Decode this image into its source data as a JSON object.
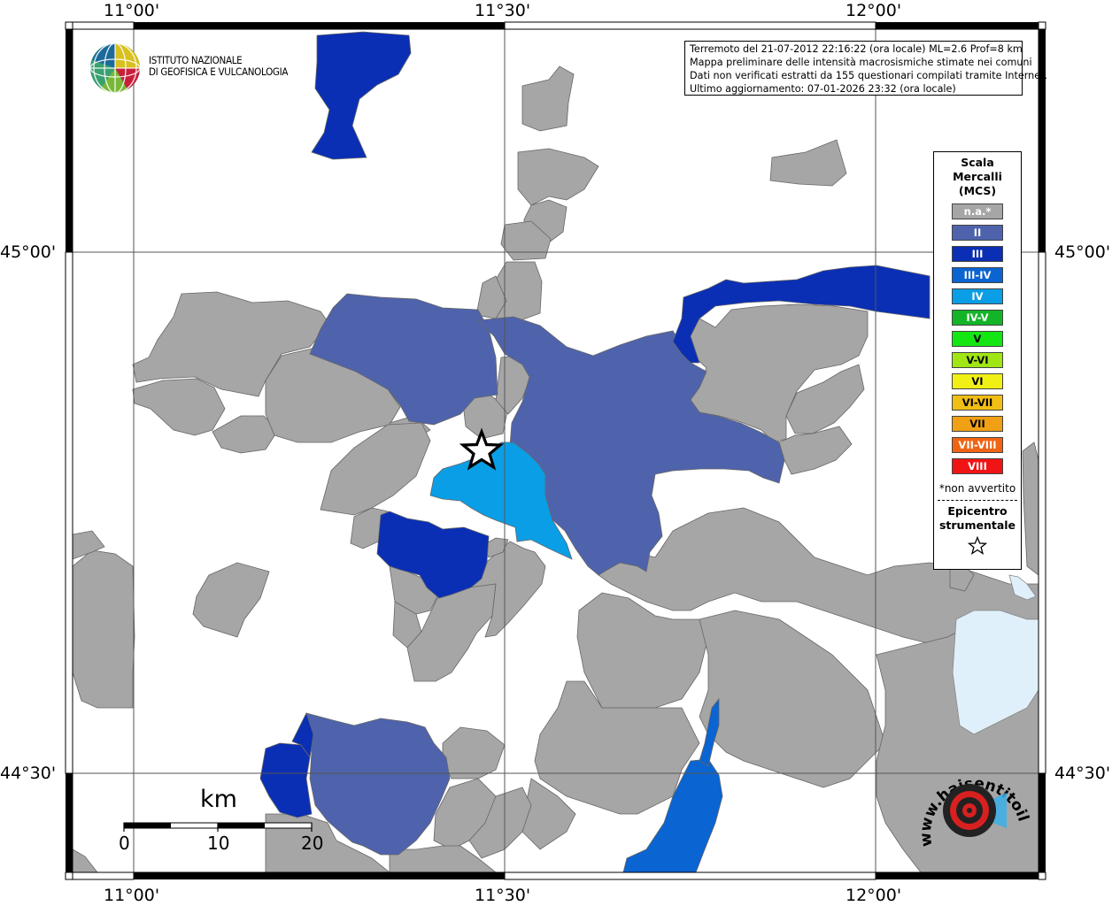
{
  "axes": {
    "lon_labels": [
      "11°00'",
      "11°30'",
      "12°00'"
    ],
    "lat_labels": [
      "45°00'",
      "44°30'"
    ]
  },
  "logo": {
    "line1": "ISTITUTO NAZIONALE",
    "line2": "DI GEOFISICA E VULCANOLOGIA",
    "icon": "globe-logo-icon"
  },
  "info": {
    "line1": "Terremoto del 21-07-2012 22:16:22 (ora locale) ML=2.6 Prof=8 km",
    "line2": "Mappa preliminare delle intensità macrosismiche stimate nei comuni",
    "line3": "Dati non verificati estratti da 155 questionari compilati tramite Internet.",
    "line4": "Ultimo aggiornamento: 07-01-2026 23:32 (ora locale)"
  },
  "legend": {
    "title_line1": "Scala",
    "title_line2": "Mercalli",
    "title_line3": "(MCS)",
    "items": [
      {
        "label": "n.a.*",
        "color": "#a6a6a6"
      },
      {
        "label": "II",
        "color": "#4f63ac"
      },
      {
        "label": "III",
        "color": "#0a2fb4"
      },
      {
        "label": "III-IV",
        "color": "#0a64d2"
      },
      {
        "label": "IV",
        "color": "#0a9ee6"
      },
      {
        "label": "IV-V",
        "color": "#14b428"
      },
      {
        "label": "V",
        "color": "#14e614"
      },
      {
        "label": "V-VI",
        "color": "#a0e614"
      },
      {
        "label": "VI",
        "color": "#f0f014"
      },
      {
        "label": "VI-VII",
        "color": "#f0be14"
      },
      {
        "label": "VII",
        "color": "#f0a014"
      },
      {
        "label": "VII-VIII",
        "color": "#f06414"
      },
      {
        "label": "VIII",
        "color": "#f01414"
      }
    ],
    "note": "*non avvertito",
    "epicenter_line1": "Epicentro",
    "epicenter_line2": "strumentale",
    "epicenter_icon": "star-icon"
  },
  "scalebar": {
    "unit": "km",
    "ticks": [
      "0",
      "10",
      "20"
    ]
  },
  "watermark": {
    "text": "www.haisentitoilterremoto.it",
    "icon": "hsit-logo-icon"
  },
  "colors": {
    "na": "#a6a6a6",
    "ii": "#4f63ac",
    "iii": "#0a2fb4",
    "iii_iv": "#0a64d2",
    "iv": "#0a9ee6",
    "water": "#e0f0fb"
  }
}
